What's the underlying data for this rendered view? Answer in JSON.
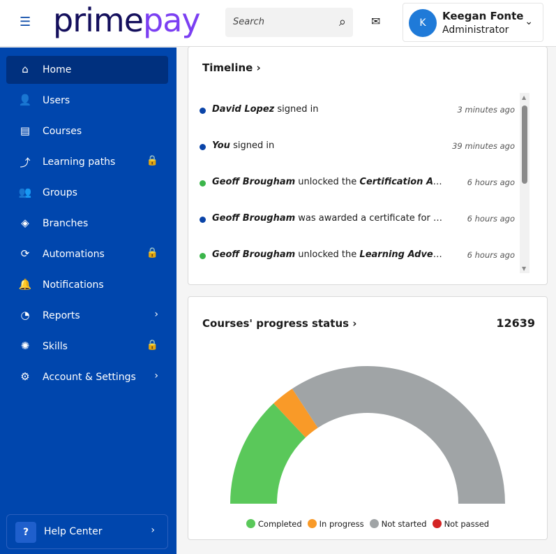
{
  "header": {
    "logo_part1": "prime",
    "logo_part2": "pay",
    "search_placeholder": "Search",
    "user_name": "Keegan Fonte",
    "user_role": "Administrator",
    "avatar_initial": "K"
  },
  "sidebar": {
    "items": [
      {
        "label": "Home",
        "icon": "⌂",
        "active": true,
        "right": ""
      },
      {
        "label": "Users",
        "icon": "👤",
        "right": ""
      },
      {
        "label": "Courses",
        "icon": "▤",
        "right": ""
      },
      {
        "label": "Learning paths",
        "icon": "⤴",
        "right": "🔒"
      },
      {
        "label": "Groups",
        "icon": "👥",
        "right": ""
      },
      {
        "label": "Branches",
        "icon": "◈",
        "right": ""
      },
      {
        "label": "Automations",
        "icon": "⟳",
        "right": "🔒"
      },
      {
        "label": "Notifications",
        "icon": "🔔",
        "right": ""
      },
      {
        "label": "Reports",
        "icon": "◔",
        "right": "›"
      },
      {
        "label": "Skills",
        "icon": "✺",
        "right": "🔒"
      },
      {
        "label": "Account & Settings",
        "icon": "⚙",
        "right": "›"
      }
    ],
    "help": "Help Center"
  },
  "timeline": {
    "title": "Timeline",
    "items": [
      {
        "actor": "David Lopez",
        "action": " signed in",
        "object": "",
        "time": "3 minutes ago",
        "color": "#0a44a8"
      },
      {
        "actor": "You",
        "action": " signed in",
        "object": "",
        "time": "39 minutes ago",
        "color": "#0a44a8"
      },
      {
        "actor": "Geoff Brougham",
        "action": " unlocked the ",
        "object": "Certification Adventure",
        "time": "6 hours ago",
        "color": "#3bb54a"
      },
      {
        "actor": "Geoff Brougham",
        "action": " was awarded a certificate for the course",
        "object": "",
        "time": "6 hours ago",
        "color": "#0a44a8"
      },
      {
        "actor": "Geoff Brougham",
        "action": " unlocked the ",
        "object": "Learning Adventure",
        "time": "6 hours ago",
        "color": "#3bb54a"
      }
    ]
  },
  "progress": {
    "title": "Courses' progress status",
    "total": "12639"
  },
  "chart_data": {
    "type": "pie",
    "subtype": "half-donut",
    "total": 12639,
    "categories": [
      "Completed",
      "In progress",
      "Not started",
      "Not passed"
    ],
    "values_percent": [
      26,
      5.5,
      68.5,
      0
    ],
    "colors": [
      "#5ac85a",
      "#f99a28",
      "#a0a4a6",
      "#d42424"
    ]
  }
}
